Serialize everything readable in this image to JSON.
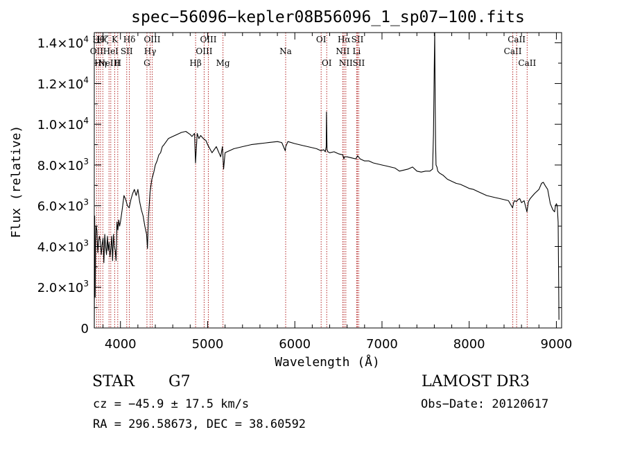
{
  "chart_data": {
    "type": "line",
    "title": "spec−56096−kepler08B56096_1_sp07−100.fits",
    "xlabel": "Wavelength (Å)",
    "ylabel": "Flux (relative)",
    "xlim": [
      3700,
      9060
    ],
    "ylim": [
      0,
      14500
    ],
    "x_ticks": [
      4000,
      5000,
      6000,
      7000,
      8000,
      9000
    ],
    "y_ticks": [
      {
        "value": 0,
        "mant": "0",
        "exp": ""
      },
      {
        "value": 2000,
        "mant": "2.0×10",
        "exp": "3"
      },
      {
        "value": 4000,
        "mant": "4.0×10",
        "exp": "3"
      },
      {
        "value": 6000,
        "mant": "6.0×10",
        "exp": "3"
      },
      {
        "value": 8000,
        "mant": "8.0×10",
        "exp": "3"
      },
      {
        "value": 10000,
        "mant": "1.0×10",
        "exp": "4"
      },
      {
        "value": 12000,
        "mant": "1.2×10",
        "exp": "4"
      },
      {
        "value": 14000,
        "mant": "1.4×10",
        "exp": "4"
      }
    ],
    "grid": false,
    "line_color": "#000000",
    "marker_color": "#b22222",
    "series": [
      {
        "name": "spectrum",
        "x": [
          3700,
          3705,
          3710,
          3715,
          3720,
          3730,
          3740,
          3750,
          3760,
          3770,
          3780,
          3790,
          3800,
          3810,
          3820,
          3830,
          3840,
          3850,
          3860,
          3870,
          3880,
          3890,
          3900,
          3910,
          3920,
          3930,
          3940,
          3950,
          3960,
          3970,
          3980,
          3990,
          4000,
          4020,
          4040,
          4060,
          4080,
          4100,
          4120,
          4140,
          4160,
          4180,
          4200,
          4220,
          4240,
          4260,
          4280,
          4300,
          4310,
          4320,
          4340,
          4360,
          4380,
          4400,
          4420,
          4440,
          4460,
          4480,
          4500,
          4550,
          4600,
          4650,
          4700,
          4750,
          4800,
          4820,
          4850,
          4861,
          4880,
          4900,
          4920,
          4950,
          4980,
          5000,
          5050,
          5100,
          5150,
          5170,
          5183,
          5200,
          5250,
          5300,
          5400,
          5500,
          5600,
          5700,
          5800,
          5850,
          5890,
          5896,
          5920,
          6000,
          6100,
          6200,
          6250,
          6300,
          6330,
          6350,
          6360,
          6363,
          6370,
          6380,
          6400,
          6450,
          6500,
          6550,
          6563,
          6570,
          6600,
          6650,
          6700,
          6720,
          6750,
          6800,
          6850,
          6900,
          6950,
          7000,
          7050,
          7100,
          7150,
          7200,
          7250,
          7300,
          7350,
          7400,
          7450,
          7500,
          7550,
          7580,
          7590,
          7600,
          7605,
          7610,
          7615,
          7620,
          7630,
          7640,
          7660,
          7700,
          7750,
          7800,
          7850,
          7900,
          7950,
          8000,
          8050,
          8100,
          8150,
          8200,
          8250,
          8300,
          8350,
          8400,
          8450,
          8498,
          8510,
          8520,
          8542,
          8560,
          8580,
          8600,
          8630,
          8662,
          8680,
          8700,
          8750,
          8800,
          8830,
          8850,
          8870,
          8900,
          8930,
          8960,
          8980,
          8990,
          9000,
          9010,
          9020,
          9030
        ],
        "y": [
          0,
          5500,
          1500,
          4200,
          5000,
          4800,
          3700,
          4300,
          4500,
          4200,
          3600,
          4100,
          4400,
          3200,
          4600,
          4000,
          3600,
          4500,
          3800,
          4200,
          3500,
          3900,
          4500,
          3300,
          4600,
          4000,
          3800,
          3300,
          5200,
          4800,
          5300,
          5000,
          5200,
          5800,
          6500,
          6300,
          6000,
          5900,
          6300,
          6600,
          6800,
          6500,
          6800,
          6200,
          5800,
          5500,
          5000,
          4600,
          3900,
          5400,
          6700,
          7300,
          7600,
          8000,
          8200,
          8500,
          8600,
          8900,
          9000,
          9300,
          9400,
          9500,
          9600,
          9650,
          9500,
          9400,
          9550,
          8100,
          9550,
          9300,
          9450,
          9300,
          9200,
          9000,
          8600,
          8900,
          8400,
          8900,
          7800,
          8600,
          8700,
          8800,
          8900,
          9000,
          9050,
          9100,
          9150,
          9100,
          8700,
          8900,
          9150,
          9050,
          8950,
          8850,
          8800,
          8700,
          8750,
          8650,
          8900,
          10600,
          8750,
          8650,
          8600,
          8650,
          8550,
          8500,
          8300,
          8400,
          8400,
          8350,
          8300,
          8450,
          8300,
          8200,
          8200,
          8100,
          8050,
          8000,
          7950,
          7900,
          7850,
          7700,
          7750,
          7800,
          7900,
          7700,
          7650,
          7700,
          7700,
          7800,
          9500,
          13000,
          14500,
          11000,
          9000,
          8000,
          7900,
          7700,
          7600,
          7500,
          7300,
          7200,
          7100,
          7050,
          6950,
          6850,
          6800,
          6700,
          6600,
          6500,
          6450,
          6400,
          6350,
          6300,
          6250,
          5900,
          6150,
          6250,
          6200,
          6300,
          6350,
          6150,
          6250,
          5700,
          6200,
          6350,
          6600,
          6800,
          7100,
          7150,
          7000,
          6800,
          6100,
          5800,
          5700,
          6000,
          6100,
          6000,
          5200,
          400
        ]
      }
    ],
    "lines": [
      {
        "x": 3727,
        "row": 1,
        "label": "OII"
      },
      {
        "x": 3750,
        "row": 0,
        "label": "Hθ"
      },
      {
        "x": 3771,
        "row": 2,
        "label": "Hη"
      },
      {
        "x": 3798,
        "row": 0,
        "label": "Hζ"
      },
      {
        "x": 3869,
        "row": 2,
        "label": "NeIII"
      },
      {
        "x": 3889,
        "row": 1,
        "label": "HeI"
      },
      {
        "x": 3934,
        "row": 0,
        "label": "K"
      },
      {
        "x": 3969,
        "row": 2,
        "label": "H"
      },
      {
        "x": 4072,
        "row": 1,
        "label": "SII"
      },
      {
        "x": 4102,
        "row": 0,
        "label": "Hδ"
      },
      {
        "x": 4304,
        "row": 2,
        "label": "G"
      },
      {
        "x": 4341,
        "row": 1,
        "label": "Hγ"
      },
      {
        "x": 4364,
        "row": 0,
        "label": "OIII"
      },
      {
        "x": 4862,
        "row": 2,
        "label": "Hβ"
      },
      {
        "x": 4960,
        "row": 1,
        "label": "OIII"
      },
      {
        "x": 5008,
        "row": 0,
        "label": "OIII"
      },
      {
        "x": 5176,
        "row": 2,
        "label": "Mg"
      },
      {
        "x": 5895,
        "row": 1,
        "label": "Na"
      },
      {
        "x": 6302,
        "row": 0,
        "label": "OI"
      },
      {
        "x": 6366,
        "row": 2,
        "label": "OI"
      },
      {
        "x": 6550,
        "row": 1,
        "label": "NII"
      },
      {
        "x": 6565,
        "row": 0,
        "label": "Hα"
      },
      {
        "x": 6585,
        "row": 2,
        "label": "NII"
      },
      {
        "x": 6709,
        "row": 1,
        "label": "Li"
      },
      {
        "x": 6718,
        "row": 0,
        "label": "SII"
      },
      {
        "x": 6733,
        "row": 2,
        "label": "SII"
      },
      {
        "x": 8500,
        "row": 1,
        "label": "CaII"
      },
      {
        "x": 8544,
        "row": 0,
        "label": "CaII"
      },
      {
        "x": 8665,
        "row": 2,
        "label": "CaII"
      }
    ]
  },
  "info": {
    "object_class": "STAR",
    "subclass": "G7",
    "survey": "LAMOST DR3",
    "redshift": "cz = −45.9 ± 17.5 km/s",
    "obs_date": "Obs−Date: 20120617",
    "coords": "RA = 296.58673, DEC =  38.60592"
  }
}
